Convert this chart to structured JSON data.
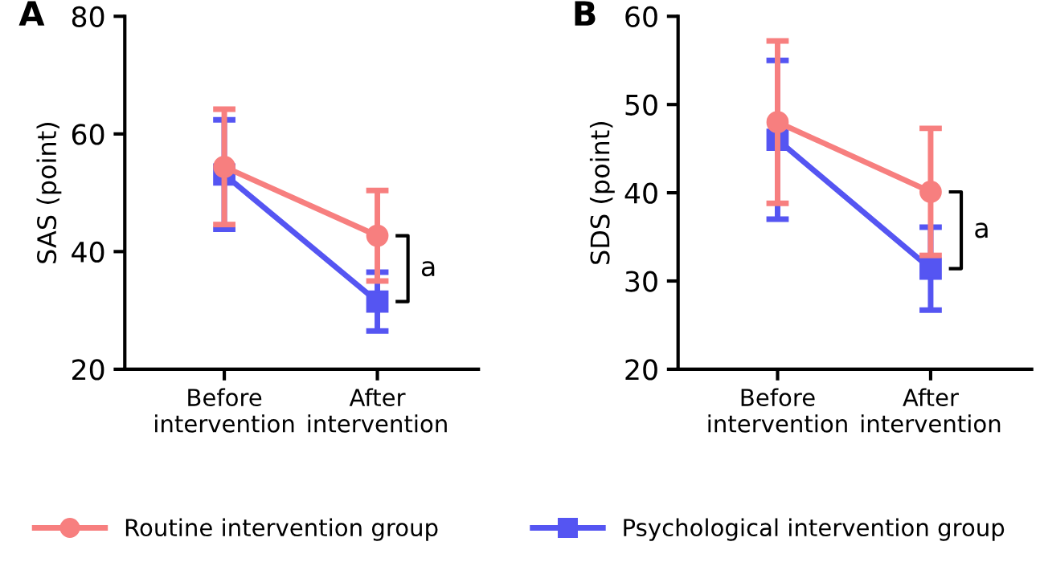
{
  "chart_data": [
    {
      "type": "line",
      "title": "A",
      "ylabel": "SAS (point)",
      "categories": [
        "Before\nintervention",
        "After\nintervention"
      ],
      "ylim": [
        20,
        80
      ],
      "yticks": [
        20,
        40,
        60,
        80
      ],
      "grid": false,
      "legend": "bottom",
      "line_style": "solid",
      "annotations": [
        "a"
      ],
      "series": [
        {
          "name": "Routine intervention group",
          "color": "#f77f7f",
          "marker": "circle",
          "values": [
            54.4,
            42.7
          ],
          "errors": [
            9.8,
            7.7
          ]
        },
        {
          "name": "Psychological intervention group",
          "color": "#5555f2",
          "marker": "square",
          "values": [
            53.1,
            31.5
          ],
          "errors": [
            9.3,
            5.0
          ]
        }
      ]
    },
    {
      "type": "line",
      "title": "B",
      "ylabel": "SDS (point)",
      "categories": [
        "Before\nintervention",
        "After\nintervention"
      ],
      "ylim": [
        20,
        60
      ],
      "yticks": [
        20,
        30,
        40,
        50,
        60
      ],
      "grid": false,
      "legend": "bottom",
      "line_style": "solid",
      "annotations": [
        "a"
      ],
      "series": [
        {
          "name": "Routine intervention group",
          "color": "#f77f7f",
          "marker": "circle",
          "values": [
            48.0,
            40.1
          ],
          "errors": [
            9.2,
            7.2
          ]
        },
        {
          "name": "Psychological intervention group",
          "color": "#5555f2",
          "marker": "square",
          "values": [
            46.0,
            31.4
          ],
          "errors": [
            9.0,
            4.7
          ]
        }
      ]
    }
  ]
}
